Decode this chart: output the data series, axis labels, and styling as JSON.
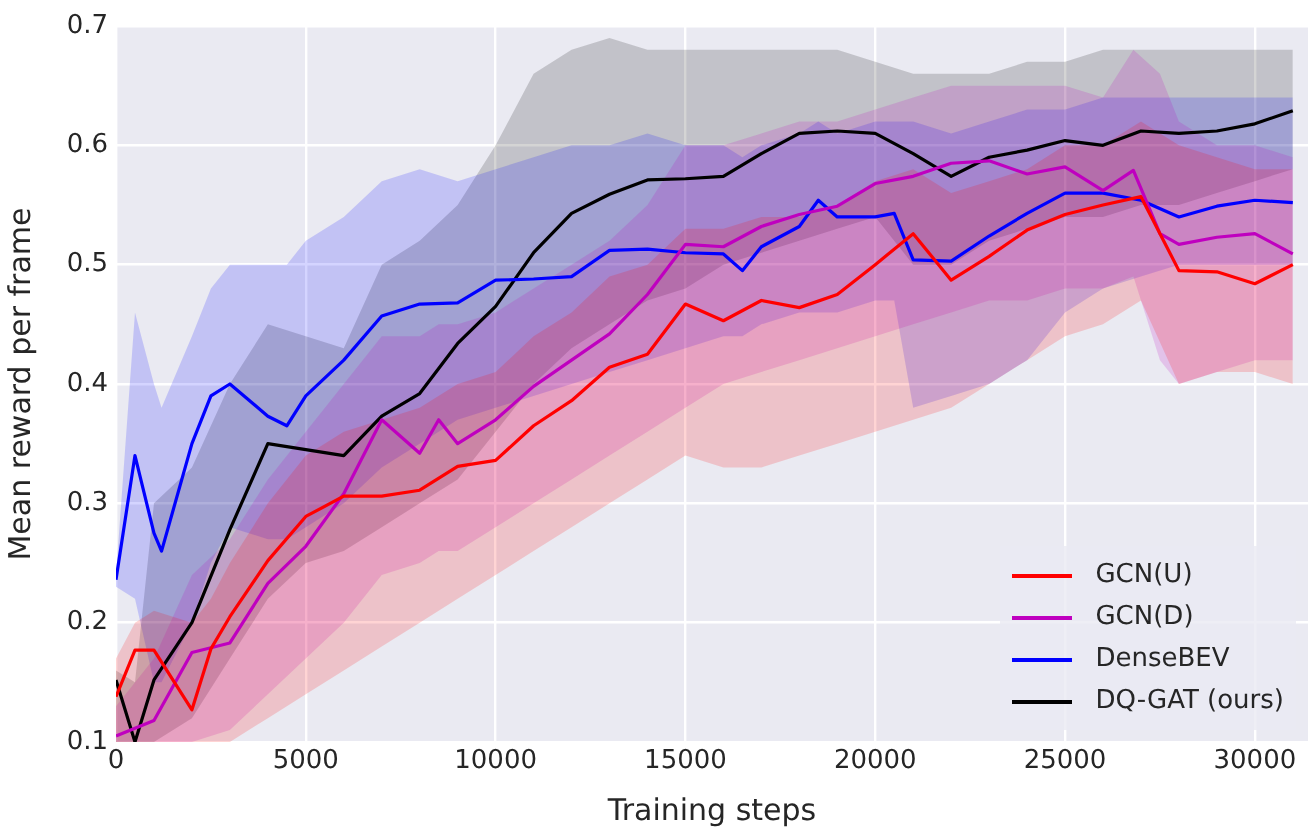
{
  "chart_data": {
    "type": "line",
    "xlabel": "Training steps",
    "ylabel": "Mean reward per frame",
    "xlim": [
      0,
      31400
    ],
    "ylim": [
      0.1,
      0.7
    ],
    "xticks": [
      0,
      5000,
      10000,
      15000,
      20000,
      25000,
      30000
    ],
    "yticks": [
      0.1,
      0.2,
      0.3,
      0.4,
      0.5,
      0.6,
      0.7
    ],
    "grid": true,
    "legend": "bottom right",
    "marker": "none",
    "line_style": "solid",
    "series": [
      {
        "name": "GCN(U)",
        "color": "#ff0000",
        "x": [
          0,
          500,
          1000,
          2000,
          2500,
          3000,
          4000,
          5000,
          6000,
          7000,
          8000,
          9000,
          10000,
          11000,
          12000,
          13000,
          14000,
          15000,
          16000,
          17000,
          18000,
          19000,
          20000,
          21000,
          22000,
          23000,
          24000,
          25000,
          26000,
          27000,
          28000,
          29000,
          30000,
          31000
        ],
        "values": [
          0.138,
          0.177,
          0.177,
          0.127,
          0.178,
          0.205,
          0.252,
          0.289,
          0.306,
          0.306,
          0.311,
          0.331,
          0.336,
          0.365,
          0.386,
          0.414,
          0.425,
          0.467,
          0.453,
          0.47,
          0.464,
          0.475,
          0.5,
          0.526,
          0.487,
          0.507,
          0.529,
          0.542,
          0.55,
          0.557,
          0.495,
          0.494,
          0.484,
          0.5
        ],
        "lower": [
          0.1,
          0.1,
          0.1,
          0.1,
          0.1,
          0.1,
          0.12,
          0.14,
          0.16,
          0.18,
          0.2,
          0.22,
          0.24,
          0.26,
          0.28,
          0.3,
          0.32,
          0.34,
          0.33,
          0.33,
          0.34,
          0.35,
          0.36,
          0.37,
          0.38,
          0.4,
          0.42,
          0.44,
          0.45,
          0.47,
          0.4,
          0.41,
          0.41,
          0.4
        ],
        "upper": [
          0.17,
          0.2,
          0.21,
          0.2,
          0.22,
          0.25,
          0.3,
          0.34,
          0.36,
          0.37,
          0.38,
          0.4,
          0.41,
          0.44,
          0.46,
          0.49,
          0.5,
          0.53,
          0.53,
          0.54,
          0.54,
          0.55,
          0.57,
          0.58,
          0.56,
          0.57,
          0.58,
          0.6,
          0.6,
          0.62,
          0.6,
          0.59,
          0.58,
          0.58
        ]
      },
      {
        "name": "GCN(D)",
        "color": "#bf00bf",
        "x": [
          0,
          1000,
          2000,
          3000,
          4000,
          5000,
          6000,
          7000,
          8000,
          8500,
          9000,
          10000,
          11000,
          12000,
          13000,
          14000,
          15000,
          16000,
          17000,
          18000,
          19000,
          20000,
          21000,
          22000,
          23000,
          24000,
          25000,
          26000,
          26800,
          27500,
          28000,
          29000,
          30000,
          31000
        ],
        "values": [
          0.105,
          0.118,
          0.175,
          0.183,
          0.233,
          0.264,
          0.308,
          0.37,
          0.342,
          0.37,
          0.35,
          0.37,
          0.398,
          0.42,
          0.442,
          0.475,
          0.517,
          0.515,
          0.532,
          0.542,
          0.549,
          0.568,
          0.574,
          0.585,
          0.587,
          0.576,
          0.582,
          0.562,
          0.579,
          0.526,
          0.517,
          0.523,
          0.526,
          0.509
        ],
        "lower": [
          0.1,
          0.1,
          0.1,
          0.11,
          0.14,
          0.17,
          0.2,
          0.24,
          0.25,
          0.26,
          0.26,
          0.28,
          0.3,
          0.32,
          0.34,
          0.36,
          0.38,
          0.4,
          0.41,
          0.42,
          0.43,
          0.44,
          0.45,
          0.46,
          0.47,
          0.47,
          0.48,
          0.48,
          0.49,
          0.42,
          0.4,
          0.41,
          0.42,
          0.42
        ],
        "upper": [
          0.13,
          0.17,
          0.24,
          0.27,
          0.32,
          0.36,
          0.4,
          0.44,
          0.44,
          0.45,
          0.45,
          0.46,
          0.48,
          0.5,
          0.52,
          0.55,
          0.6,
          0.6,
          0.61,
          0.62,
          0.62,
          0.63,
          0.64,
          0.65,
          0.65,
          0.65,
          0.65,
          0.64,
          0.68,
          0.66,
          0.62,
          0.6,
          0.6,
          0.59
        ]
      },
      {
        "name": "DenseBEV",
        "color": "#0000ff",
        "x": [
          0,
          500,
          1000,
          1200,
          2000,
          2500,
          3000,
          4000,
          4500,
          5000,
          6000,
          7000,
          8000,
          9000,
          10000,
          11000,
          12000,
          13000,
          14000,
          15000,
          16000,
          16500,
          17000,
          18000,
          18500,
          19000,
          20000,
          20500,
          21000,
          22000,
          23000,
          24000,
          25000,
          26000,
          27000,
          28000,
          29000,
          30000,
          31000
        ],
        "values": [
          0.236,
          0.34,
          0.275,
          0.26,
          0.35,
          0.39,
          0.4,
          0.373,
          0.365,
          0.39,
          0.42,
          0.457,
          0.467,
          0.468,
          0.487,
          0.488,
          0.49,
          0.512,
          0.513,
          0.51,
          0.509,
          0.495,
          0.515,
          0.532,
          0.554,
          0.54,
          0.54,
          0.543,
          0.504,
          0.503,
          0.524,
          0.543,
          0.56,
          0.56,
          0.554,
          0.54,
          0.549,
          0.554,
          0.552
        ],
        "lower": [
          0.23,
          0.22,
          0.15,
          0.15,
          0.2,
          0.25,
          0.28,
          0.27,
          0.27,
          0.28,
          0.3,
          0.33,
          0.35,
          0.37,
          0.38,
          0.39,
          0.4,
          0.41,
          0.42,
          0.43,
          0.44,
          0.44,
          0.45,
          0.46,
          0.46,
          0.46,
          0.47,
          0.47,
          0.38,
          0.39,
          0.4,
          0.42,
          0.46,
          0.48,
          0.49,
          0.5,
          0.5,
          0.5,
          0.5
        ],
        "upper": [
          0.24,
          0.46,
          0.4,
          0.38,
          0.44,
          0.48,
          0.5,
          0.5,
          0.5,
          0.52,
          0.54,
          0.57,
          0.58,
          0.57,
          0.58,
          0.59,
          0.6,
          0.6,
          0.61,
          0.6,
          0.6,
          0.59,
          0.6,
          0.61,
          0.62,
          0.61,
          0.62,
          0.62,
          0.62,
          0.61,
          0.62,
          0.63,
          0.63,
          0.64,
          0.64,
          0.64,
          0.64,
          0.64,
          0.64
        ]
      },
      {
        "name": "DQ-GAT (ours)",
        "color": "#000000",
        "x": [
          0,
          500,
          1000,
          2000,
          3000,
          4000,
          5000,
          6000,
          7000,
          8000,
          9000,
          10000,
          11000,
          12000,
          13000,
          14000,
          15000,
          16000,
          17000,
          18000,
          19000,
          20000,
          21000,
          22000,
          23000,
          24000,
          25000,
          26000,
          27000,
          28000,
          29000,
          30000,
          31000
        ],
        "values": [
          0.152,
          0.1,
          0.152,
          0.2,
          0.278,
          0.35,
          0.345,
          0.34,
          0.373,
          0.392,
          0.434,
          0.465,
          0.51,
          0.543,
          0.559,
          0.571,
          0.572,
          0.574,
          0.593,
          0.61,
          0.612,
          0.61,
          0.593,
          0.574,
          0.59,
          0.596,
          0.604,
          0.6,
          0.612,
          0.61,
          0.612,
          0.618,
          0.629
        ],
        "lower": [
          0.1,
          0.1,
          0.1,
          0.12,
          0.17,
          0.22,
          0.25,
          0.26,
          0.28,
          0.3,
          0.32,
          0.36,
          0.4,
          0.43,
          0.45,
          0.47,
          0.48,
          0.5,
          0.51,
          0.52,
          0.53,
          0.54,
          0.5,
          0.5,
          0.52,
          0.53,
          0.54,
          0.54,
          0.55,
          0.55,
          0.56,
          0.57,
          0.58
        ],
        "upper": [
          0.16,
          0.15,
          0.3,
          0.33,
          0.4,
          0.45,
          0.44,
          0.43,
          0.5,
          0.52,
          0.55,
          0.6,
          0.66,
          0.68,
          0.69,
          0.68,
          0.68,
          0.68,
          0.68,
          0.68,
          0.68,
          0.67,
          0.66,
          0.66,
          0.66,
          0.67,
          0.67,
          0.68,
          0.68,
          0.68,
          0.68,
          0.68,
          0.68
        ]
      }
    ]
  }
}
